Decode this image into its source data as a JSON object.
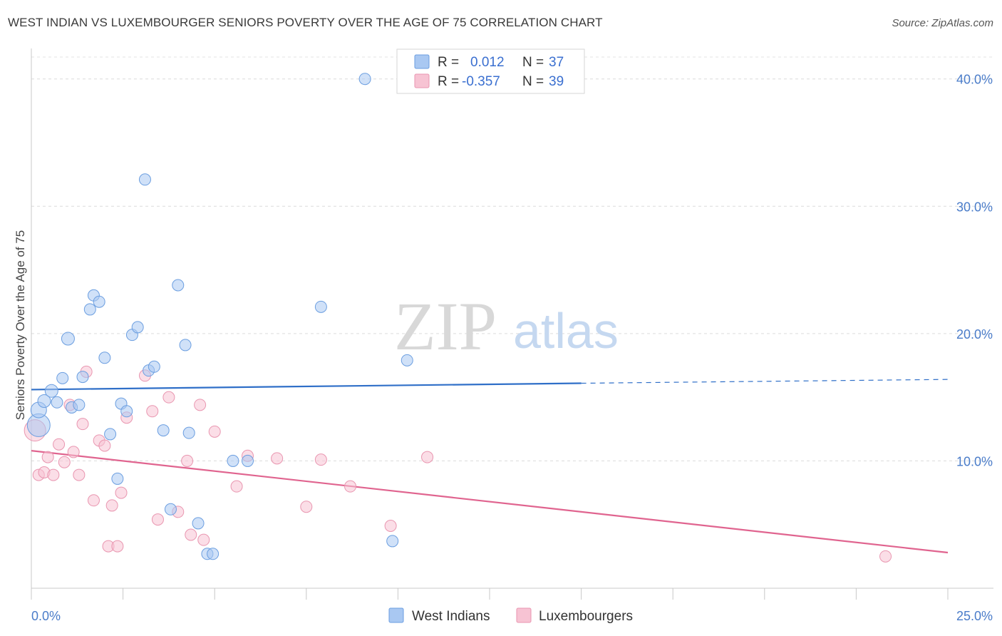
{
  "title": "WEST INDIAN VS LUXEMBOURGER SENIORS POVERTY OVER THE AGE OF 75 CORRELATION CHART",
  "source": "Source: ZipAtlas.com",
  "watermark": {
    "zip": "ZIP",
    "atlas": "atlas"
  },
  "legend_top": {
    "rows": [
      {
        "r_label": "R =",
        "r_value": "0.012",
        "n_label": "N =",
        "n_value": "37",
        "color": "#a9c8f2",
        "stroke": "#6b9ee0"
      },
      {
        "r_label": "R =",
        "r_value": "-0.357",
        "n_label": "N =",
        "n_value": "39",
        "color": "#f7c3d3",
        "stroke": "#e996b0"
      }
    ]
  },
  "legend_bottom": {
    "items": [
      {
        "label": "West Indians",
        "color": "#a9c8f2",
        "stroke": "#6b9ee0"
      },
      {
        "label": "Luxembourgers",
        "color": "#f7c3d3",
        "stroke": "#e996b0"
      }
    ]
  },
  "chart_data": {
    "type": "scatter",
    "title": "WEST INDIAN VS LUXEMBOURGER SENIORS POVERTY OVER THE AGE OF 75 CORRELATION CHART",
    "xlabel": "",
    "ylabel": "Seniors Poverty Over the Age of 75",
    "xlim": [
      0,
      25
    ],
    "ylim": [
      0,
      42
    ],
    "x_tick_labels": [
      "0.0%",
      "25.0%"
    ],
    "y_ticks": [
      10,
      20,
      30,
      40
    ],
    "y_tick_labels": [
      "10.0%",
      "20.0%",
      "30.0%",
      "40.0%"
    ],
    "grid": true,
    "legend_placement": "top-center",
    "series": [
      {
        "name": "West Indians",
        "color": "#a9c8f2",
        "stroke": "#6b9ee0",
        "line_color": "#2f6fc8",
        "trend": {
          "x0": 0,
          "y0": 15.6,
          "x1": 15,
          "y1": 16.1,
          "x_dash_end": 25,
          "y_dash_end": 16.4
        },
        "points": [
          {
            "x": 0.2,
            "y": 12.8,
            "s": 16
          },
          {
            "x": 0.2,
            "y": 14.0,
            "s": 11
          },
          {
            "x": 0.35,
            "y": 14.7,
            "s": 9
          },
          {
            "x": 0.55,
            "y": 15.5,
            "s": 9
          },
          {
            "x": 0.7,
            "y": 14.6,
            "s": 8
          },
          {
            "x": 0.85,
            "y": 16.5,
            "s": 8
          },
          {
            "x": 1.0,
            "y": 19.6,
            "s": 9
          },
          {
            "x": 1.1,
            "y": 14.2,
            "s": 8
          },
          {
            "x": 1.3,
            "y": 14.4,
            "s": 8
          },
          {
            "x": 1.4,
            "y": 16.6,
            "s": 8
          },
          {
            "x": 1.6,
            "y": 21.9,
            "s": 8
          },
          {
            "x": 1.7,
            "y": 23.0,
            "s": 8
          },
          {
            "x": 1.85,
            "y": 22.5,
            "s": 8
          },
          {
            "x": 2.0,
            "y": 18.1,
            "s": 8
          },
          {
            "x": 2.15,
            "y": 12.1,
            "s": 8
          },
          {
            "x": 2.35,
            "y": 8.6,
            "s": 8
          },
          {
            "x": 2.45,
            "y": 14.5,
            "s": 8
          },
          {
            "x": 2.6,
            "y": 13.9,
            "s": 8
          },
          {
            "x": 2.75,
            "y": 19.9,
            "s": 8
          },
          {
            "x": 2.9,
            "y": 20.5,
            "s": 8
          },
          {
            "x": 3.1,
            "y": 32.1,
            "s": 8
          },
          {
            "x": 3.2,
            "y": 17.1,
            "s": 8
          },
          {
            "x": 3.35,
            "y": 17.4,
            "s": 8
          },
          {
            "x": 3.6,
            "y": 12.4,
            "s": 8
          },
          {
            "x": 3.8,
            "y": 6.2,
            "s": 8
          },
          {
            "x": 4.0,
            "y": 23.8,
            "s": 8
          },
          {
            "x": 4.2,
            "y": 19.1,
            "s": 8
          },
          {
            "x": 4.3,
            "y": 12.2,
            "s": 8
          },
          {
            "x": 4.55,
            "y": 5.1,
            "s": 8
          },
          {
            "x": 4.8,
            "y": 2.7,
            "s": 8
          },
          {
            "x": 4.95,
            "y": 2.7,
            "s": 8
          },
          {
            "x": 5.5,
            "y": 10.0,
            "s": 8
          },
          {
            "x": 5.9,
            "y": 10.0,
            "s": 8
          },
          {
            "x": 7.9,
            "y": 22.1,
            "s": 8
          },
          {
            "x": 9.1,
            "y": 40.0,
            "s": 8
          },
          {
            "x": 9.85,
            "y": 3.7,
            "s": 8
          },
          {
            "x": 10.25,
            "y": 17.9,
            "s": 8
          }
        ]
      },
      {
        "name": "Luxembourgers",
        "color": "#f7c3d3",
        "stroke": "#e996b0",
        "line_color": "#e0648f",
        "trend": {
          "x0": 0,
          "y0": 10.8,
          "x1": 25,
          "y1": 2.8
        },
        "points": [
          {
            "x": 0.1,
            "y": 12.4,
            "s": 15
          },
          {
            "x": 0.2,
            "y": 8.9,
            "s": 8
          },
          {
            "x": 0.35,
            "y": 9.1,
            "s": 8
          },
          {
            "x": 0.45,
            "y": 10.3,
            "s": 8
          },
          {
            "x": 0.6,
            "y": 8.9,
            "s": 8
          },
          {
            "x": 0.75,
            "y": 11.3,
            "s": 8
          },
          {
            "x": 0.9,
            "y": 9.9,
            "s": 8
          },
          {
            "x": 1.05,
            "y": 14.4,
            "s": 8
          },
          {
            "x": 1.15,
            "y": 10.7,
            "s": 8
          },
          {
            "x": 1.3,
            "y": 8.9,
            "s": 8
          },
          {
            "x": 1.4,
            "y": 12.9,
            "s": 8
          },
          {
            "x": 1.5,
            "y": 17.0,
            "s": 8
          },
          {
            "x": 1.7,
            "y": 6.9,
            "s": 8
          },
          {
            "x": 1.85,
            "y": 11.6,
            "s": 8
          },
          {
            "x": 2.0,
            "y": 11.2,
            "s": 8
          },
          {
            "x": 2.1,
            "y": 3.3,
            "s": 8
          },
          {
            "x": 2.2,
            "y": 6.5,
            "s": 8
          },
          {
            "x": 2.35,
            "y": 3.3,
            "s": 8
          },
          {
            "x": 2.45,
            "y": 7.5,
            "s": 8
          },
          {
            "x": 2.6,
            "y": 13.4,
            "s": 8
          },
          {
            "x": 3.1,
            "y": 16.7,
            "s": 8
          },
          {
            "x": 3.3,
            "y": 13.9,
            "s": 8
          },
          {
            "x": 3.45,
            "y": 5.4,
            "s": 8
          },
          {
            "x": 3.75,
            "y": 15.0,
            "s": 8
          },
          {
            "x": 4.0,
            "y": 6.0,
            "s": 8
          },
          {
            "x": 4.25,
            "y": 10.0,
            "s": 8
          },
          {
            "x": 4.35,
            "y": 4.2,
            "s": 8
          },
          {
            "x": 4.6,
            "y": 14.4,
            "s": 8
          },
          {
            "x": 4.7,
            "y": 3.8,
            "s": 8
          },
          {
            "x": 5.0,
            "y": 12.3,
            "s": 8
          },
          {
            "x": 5.6,
            "y": 8.0,
            "s": 8
          },
          {
            "x": 5.9,
            "y": 10.4,
            "s": 8
          },
          {
            "x": 6.7,
            "y": 10.2,
            "s": 8
          },
          {
            "x": 7.5,
            "y": 6.4,
            "s": 8
          },
          {
            "x": 7.9,
            "y": 10.1,
            "s": 8
          },
          {
            "x": 8.7,
            "y": 8.0,
            "s": 8
          },
          {
            "x": 9.8,
            "y": 4.9,
            "s": 8
          },
          {
            "x": 10.8,
            "y": 10.3,
            "s": 8
          },
          {
            "x": 23.3,
            "y": 2.5,
            "s": 8
          }
        ]
      }
    ]
  }
}
